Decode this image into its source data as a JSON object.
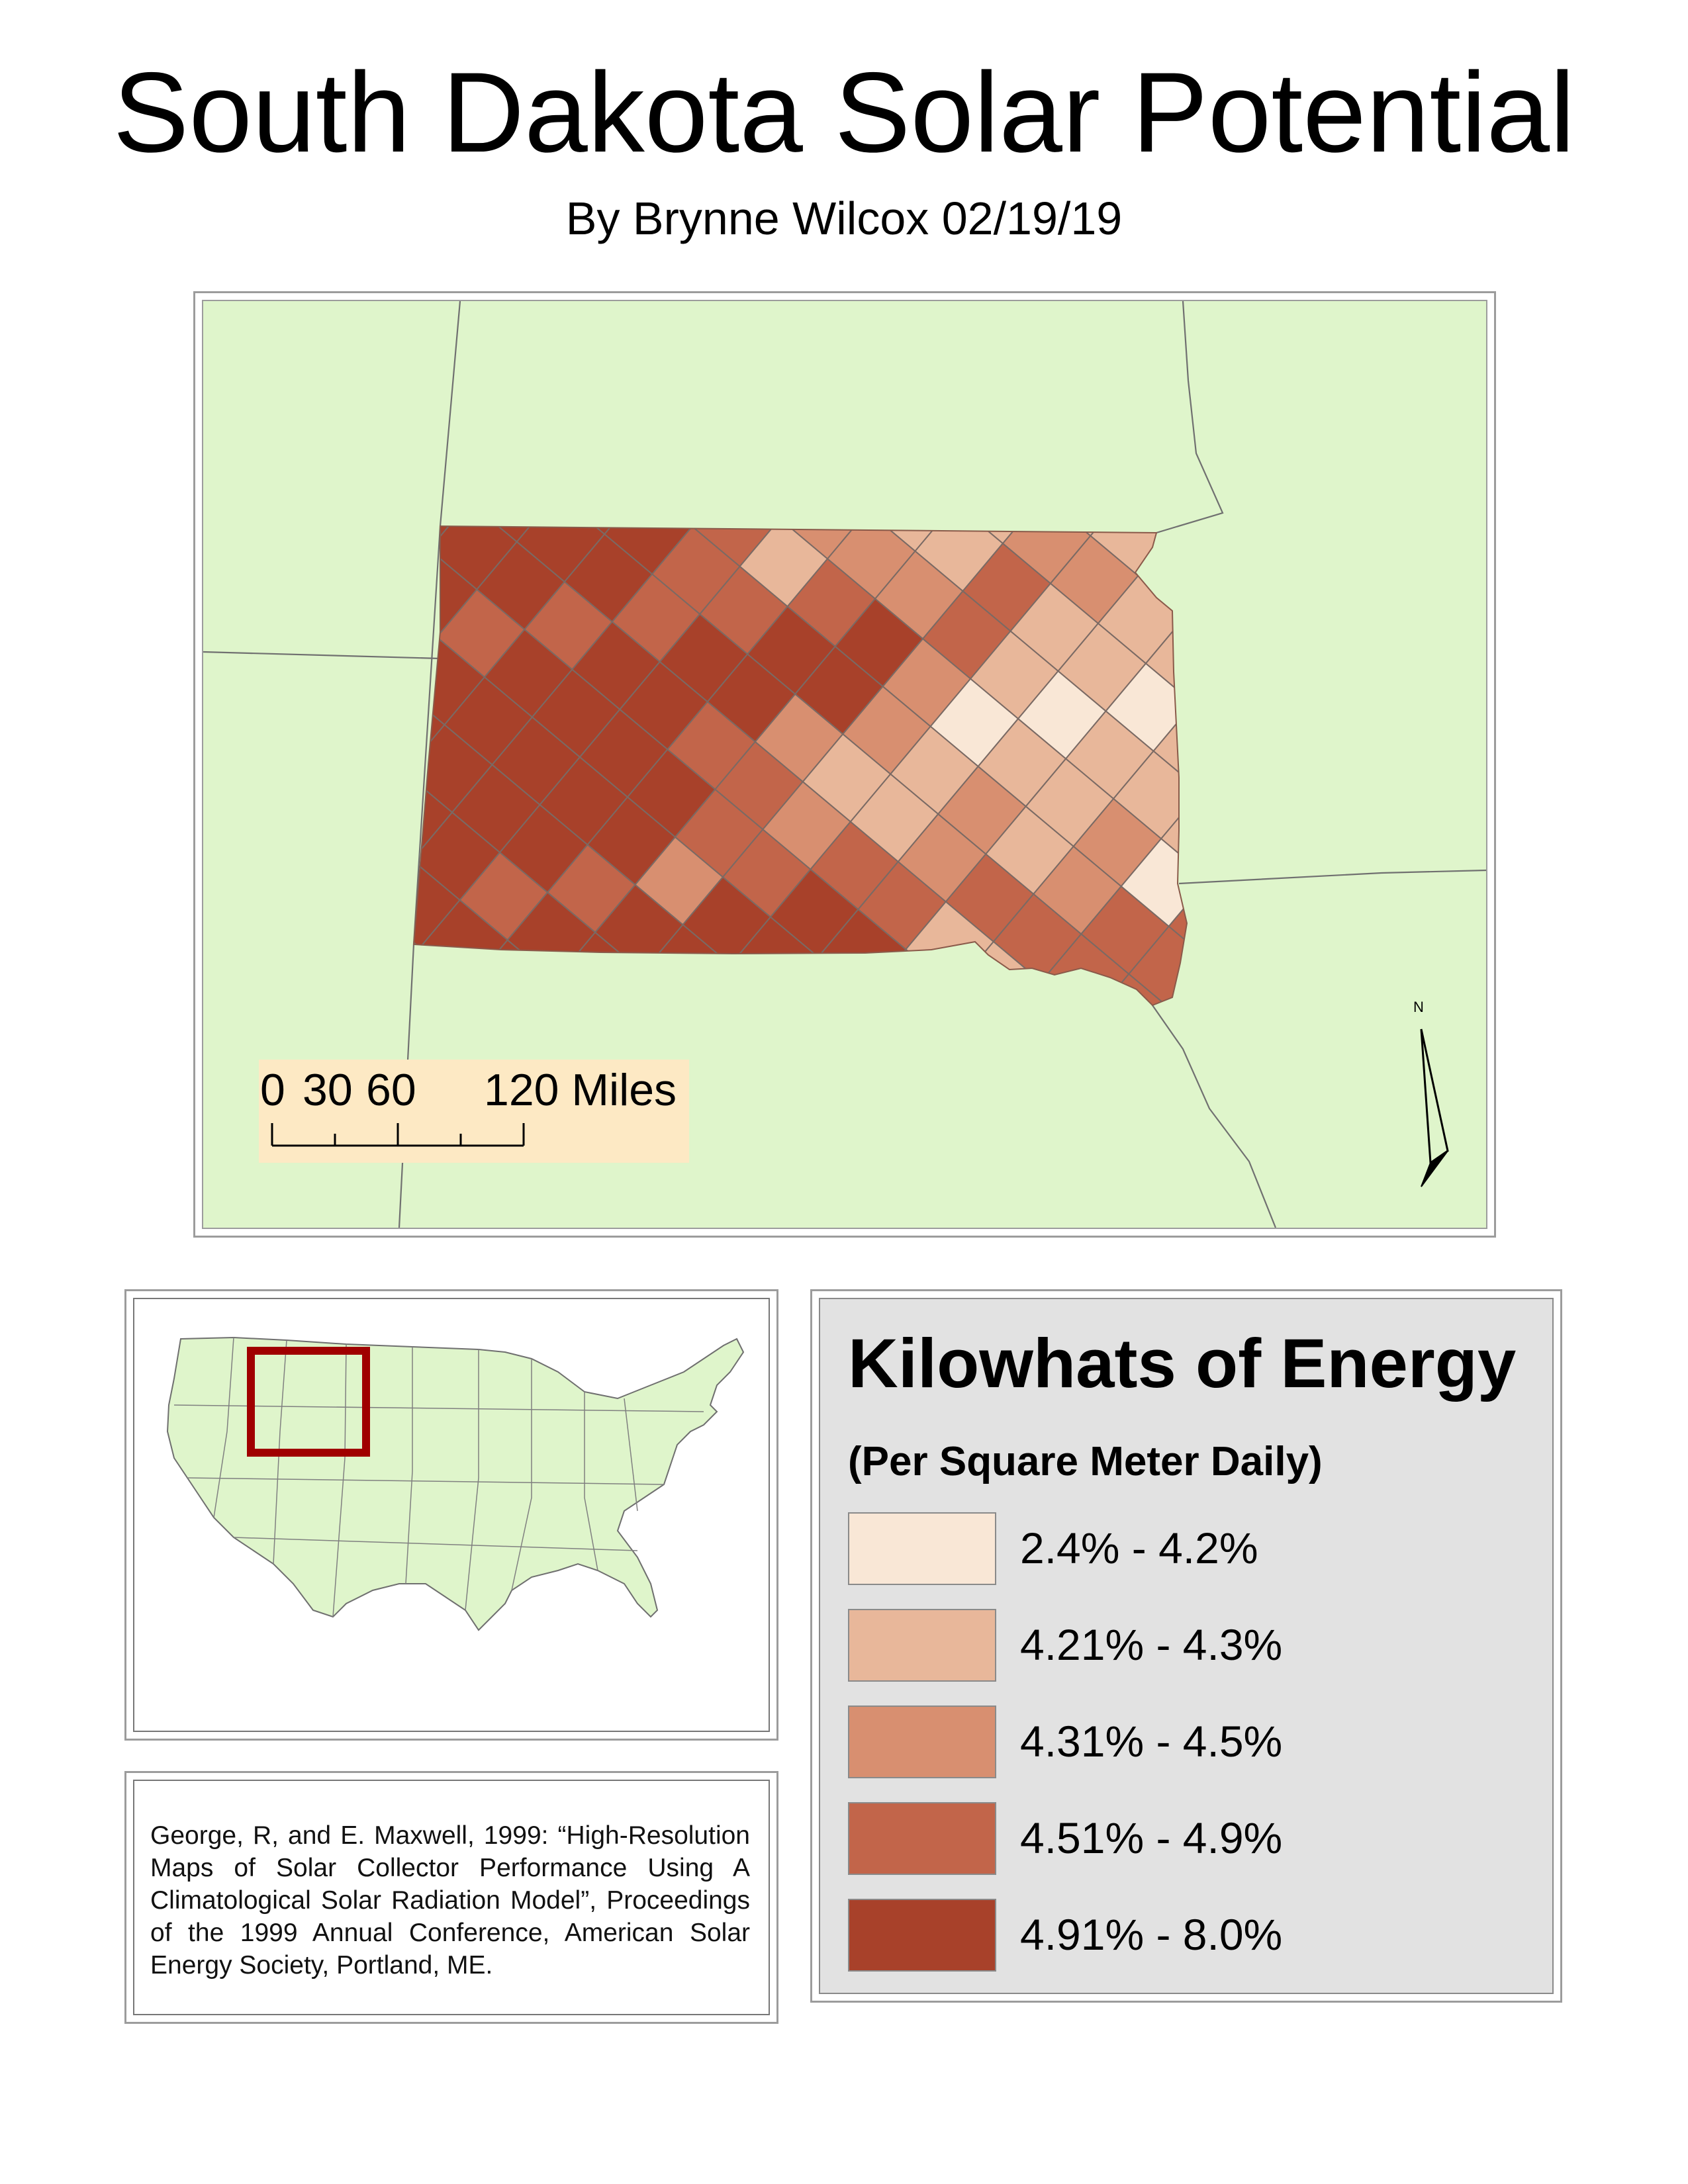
{
  "title": "South Dakota Solar Potential",
  "subtitle": "By Brynne Wilcox 02/19/19",
  "map": {
    "north_arrow_label": "N",
    "scale": {
      "labels": [
        "0",
        "30",
        "60",
        "120 Miles"
      ]
    }
  },
  "legend": {
    "title": "Kilowhats of Energy",
    "subtitle": "(Per Square Meter Daily)",
    "classes": [
      {
        "label": "2.4% - 4.2%",
        "color": "#f9e7d6"
      },
      {
        "label": "4.21% - 4.3%",
        "color": "#e8b79a"
      },
      {
        "label": "4.31% - 4.5%",
        "color": "#d88f70"
      },
      {
        "label": "4.51% - 4.9%",
        "color": "#c2654a"
      },
      {
        "label": "4.91% - 8.0%",
        "color": "#a8412a"
      }
    ]
  },
  "colors": {
    "land": "#dff5cb",
    "inset_box": "#a00000"
  },
  "citation": "George, R, and E. Maxwell, 1999: “High-Resolution Maps of Solar Collector Performance Using A Climatological Solar Radiation Model”, Proceedings of the 1999 Annual Conference, American Solar Energy Society, Portland, ME."
}
